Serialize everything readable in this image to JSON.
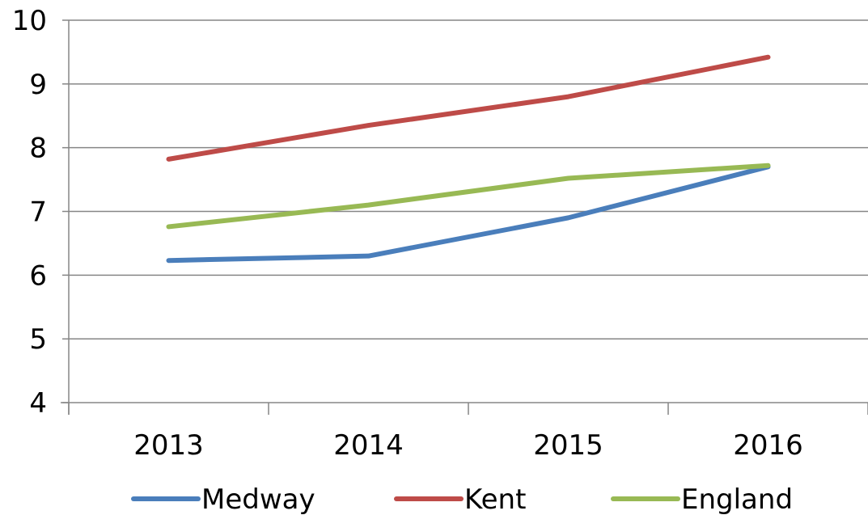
{
  "chart_data": {
    "type": "line",
    "categories": [
      "2013",
      "2014",
      "2015",
      "2016"
    ],
    "ylim": [
      4,
      10
    ],
    "yticks": [
      "4",
      "5",
      "6",
      "7",
      "8",
      "9",
      "10"
    ],
    "grid": true,
    "legend_position": "bottom",
    "series": [
      {
        "name": "Medway",
        "color": "#4a7ebb",
        "values": [
          6.23,
          6.3,
          6.9,
          7.7
        ]
      },
      {
        "name": "Kent",
        "color": "#be4b48",
        "values": [
          7.82,
          8.35,
          8.8,
          9.42
        ]
      },
      {
        "name": "England",
        "color": "#98b954",
        "values": [
          6.76,
          7.1,
          7.52,
          7.72
        ]
      }
    ]
  },
  "colors": {
    "gridline": "#868686",
    "axis": "#868686"
  }
}
